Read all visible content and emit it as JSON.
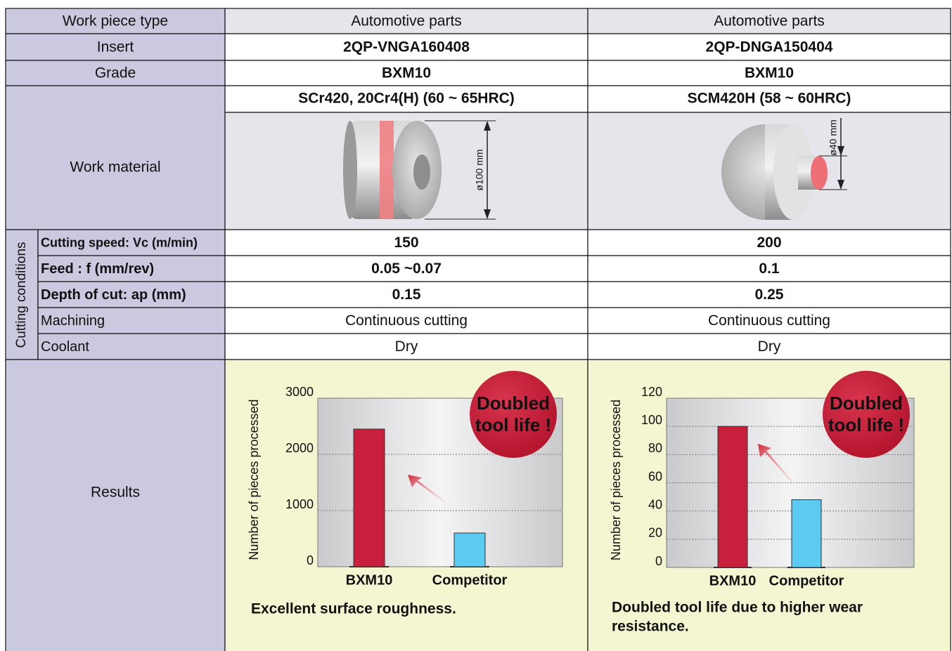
{
  "table": {
    "rows": [
      {
        "label": "Work piece type",
        "cells": [
          "Automotive parts",
          "Automotive parts"
        ]
      },
      {
        "label": "Insert",
        "cells": [
          "2QP-VNGA160408",
          "2QP-DNGA150404"
        ]
      },
      {
        "label": "Grade",
        "cells": [
          "BXM10",
          "BXM10"
        ]
      }
    ],
    "work_material": {
      "label": "Work material",
      "cells": [
        "SCr420, 20Cr4(H) (60 ~ 65HRC)",
        "SCM420H (58 ~ 60HRC)"
      ],
      "dimensions": [
        "ø100 mm",
        "ø40 mm"
      ]
    },
    "cutting_conditions": {
      "label": "Cutting conditions",
      "rows": [
        {
          "label": "Cutting speed: Vc (m/min)",
          "cells": [
            "150",
            "200"
          ],
          "bold": true
        },
        {
          "label": "Feed         : f (mm/rev)",
          "cells": [
            "0.05 ~0.07",
            "0.1"
          ],
          "bold": true
        },
        {
          "label": "Depth of cut: ap (mm)",
          "cells": [
            "0.15",
            "0.25"
          ],
          "bold": true
        },
        {
          "label": "Machining",
          "cells": [
            "Continuous cutting",
            "Continuous cutting"
          ],
          "bold": false
        },
        {
          "label": "Coolant",
          "cells": [
            "Dry",
            "Dry"
          ],
          "bold": false
        }
      ]
    },
    "results": {
      "label": "Results"
    }
  },
  "chart_data": [
    {
      "type": "bar",
      "y_label": "Number of pieces processed",
      "categories": [
        "BXM10",
        "Competitor"
      ],
      "values": [
        2450,
        600
      ],
      "colors": [
        "#c8203c",
        "#5ccbf2"
      ],
      "label_colors": [
        "#c8203c",
        "#222222"
      ],
      "ylim": [
        0,
        3000
      ],
      "yticks": [
        0,
        1000,
        2000,
        3000
      ],
      "grid": true,
      "badge": [
        "Doubled",
        "tool life !"
      ],
      "note": [
        "Excellent surface roughness."
      ]
    },
    {
      "type": "bar",
      "y_label": "Number of pieces processed",
      "categories": [
        "BXM10",
        "Competitor"
      ],
      "values": [
        100,
        48
      ],
      "colors": [
        "#c8203c",
        "#5ccbf2"
      ],
      "label_colors": [
        "#c8203c",
        "#222222"
      ],
      "ylim": [
        0,
        120
      ],
      "yticks": [
        0,
        20,
        40,
        60,
        80,
        100,
        120
      ],
      "grid": true,
      "badge": [
        "Doubled",
        "tool life !"
      ],
      "note": [
        "Doubled tool life due to higher wear",
        "resistance."
      ]
    }
  ]
}
